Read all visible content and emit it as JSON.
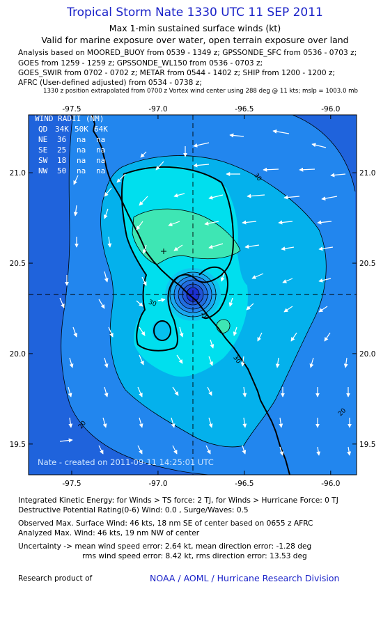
{
  "header": {
    "title": "Tropical Storm Nate 1330 UTC 11 SEP 2011",
    "subtitle1": "Max 1-min sustained surface winds (kt)",
    "subtitle2": "Valid for marine exposure over water, open terrain exposure over land"
  },
  "sources": [
    "Analysis based on MOORED_BUOY from 0539 - 1349 z; GPSSONDE_SFC from 0536 - 0703 z;",
    "GOES from 1259 - 1259 z; GPSSONDE_WL150 from 0536 - 0703 z;",
    "GOES_SWIR from 0702 - 0702 z; METAR from 0544 - 1402 z; SHIP from 1200 - 1200 z;",
    "AFRC (User-defined adjusted) from 0534 - 0738 z;"
  ],
  "position_note": "1330 z position extrapolated from 0700 z Vortex wind center using 288 deg @ 11 kts; mslp = 1003.0 mb",
  "chart_data": {
    "type": "contour_map",
    "x_ticks": [
      "-97.5",
      "-97.0",
      "-96.5",
      "-96.0"
    ],
    "y_ticks": [
      "21.0",
      "20.5",
      "20.0",
      "19.5"
    ],
    "xlim": [
      -97.75,
      -95.85
    ],
    "ylim": [
      19.33,
      21.32
    ],
    "center": {
      "lon": -96.8,
      "lat": 20.32
    },
    "max_wind_marker": {
      "lon": -96.98,
      "lat": 20.56
    },
    "contour_labels": [
      "30",
      "30",
      "30",
      "20",
      "20",
      "20"
    ],
    "wind_radii": {
      "title": "WIND RADII (NM)",
      "columns": [
        "QD",
        "34K",
        "50K",
        "64K"
      ],
      "rows": [
        [
          "NE",
          "36",
          "na",
          "na"
        ],
        [
          "SE",
          "25",
          "na",
          "na"
        ],
        [
          "SW",
          "18",
          "na",
          "na"
        ],
        [
          "NW",
          "50",
          "na",
          "na"
        ]
      ]
    },
    "created_note": "Nate - created on 2011-09-11 14:25:01 UTC",
    "colors": {
      "c10": "#1f63dc",
      "c20": "#2286ee",
      "c30": "#04b1ec",
      "c40": "#00dfee",
      "c45": "#3ee6b4",
      "eye": "#1b2fd0"
    }
  },
  "footer": {
    "ike": "Integrated Kinetic Energy:  for Winds > TS force: 2 TJ,  for Winds > Hurricane Force: 0 TJ",
    "dpr": "Destructive Potential Rating(0-6)   Wind: 0.0 , Surge/Waves: 0.5",
    "obs_max": "Observed Max. Surface Wind: 46 kts, 18 nm SE of center based on 0655 z AFRC",
    "ana_max": "Analyzed Max. Wind: 46 kts, 19 nm NW of center",
    "uncert1": "Uncertainty -> mean wind speed error: 2.64 kt,   mean direction error:  -1.28 deg",
    "uncert2": "rms wind speed error: 8.42 kt,   rms direction error: 13.53 deg",
    "research": "Research product of",
    "noaa": "NOAA / AOML / Hurricane Research Division"
  }
}
